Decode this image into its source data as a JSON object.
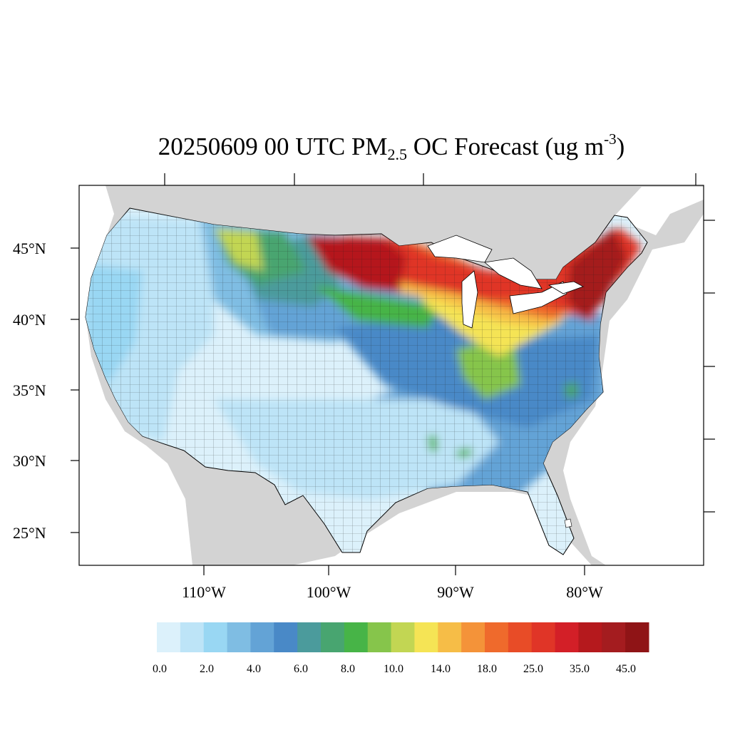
{
  "title": {
    "date_time": "20250609 00 UTC PM",
    "subscript": "2.5",
    "main": " OC Forecast (ug m",
    "superscript": "-3",
    "close": ")"
  },
  "lat_labels": [
    "45°N",
    "40°N",
    "35°N",
    "30°N",
    "25°N"
  ],
  "lon_labels": [
    "110°W",
    "100°W",
    "90°W",
    "80°W"
  ],
  "colorbar": {
    "colors": [
      "#dcf1fb",
      "#bde4f7",
      "#99d7f3",
      "#7fbde3",
      "#63a3d6",
      "#4989c7",
      "#4b9b9c",
      "#48a570",
      "#47b447",
      "#86c54b",
      "#c2d653",
      "#f5e455",
      "#f6bd47",
      "#f49339",
      "#ef6a2c",
      "#e84c27",
      "#e03527",
      "#d31f27",
      "#b5191d",
      "#a41c1f",
      "#8f1416"
    ],
    "labels": [
      "0.0",
      "2.0",
      "4.0",
      "6.0",
      "8.0",
      "10.0",
      "14.0",
      "18.0",
      "25.0",
      "35.0",
      "45.0"
    ]
  }
}
